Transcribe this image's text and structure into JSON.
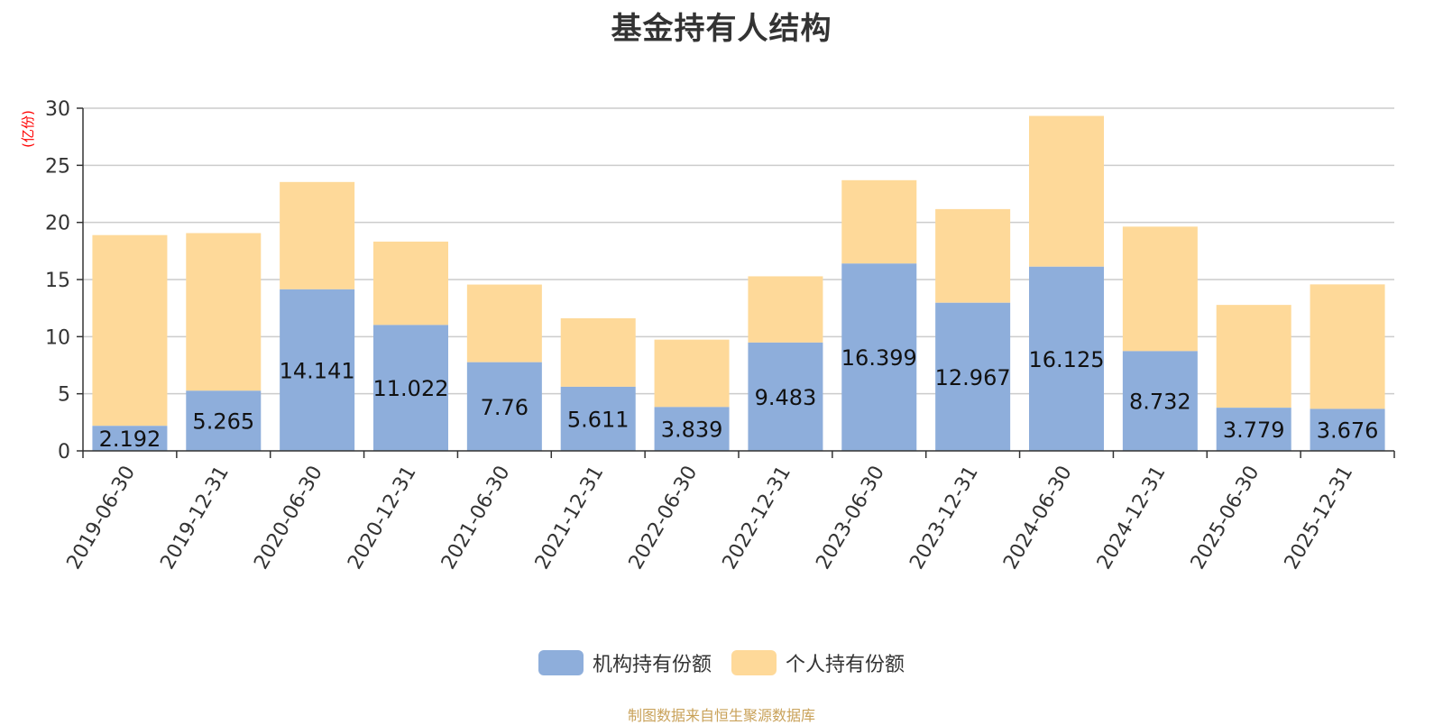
{
  "chart_data": {
    "type": "bar",
    "stacked": true,
    "title": "基金持有人结构",
    "ylabel": "(亿份)",
    "xlabel": "",
    "ylim": [
      0,
      30
    ],
    "yticks": [
      0,
      5,
      10,
      15,
      20,
      25,
      30
    ],
    "grid": true,
    "legend_position": "bottom",
    "categories": [
      "2019-06-30",
      "2019-12-31",
      "2020-06-30",
      "2020-12-31",
      "2021-06-30",
      "2021-12-31",
      "2022-06-30",
      "2022-12-31",
      "2023-06-30",
      "2023-12-31",
      "2024-06-30",
      "2024-12-31",
      "2025-06-30",
      "2025-12-31"
    ],
    "series": [
      {
        "name": "机构持有份额",
        "color": "#8eaedb",
        "values": [
          2.192,
          5.265,
          14.141,
          11.022,
          7.76,
          5.611,
          3.839,
          9.483,
          16.399,
          12.967,
          16.125,
          8.732,
          3.779,
          3.676
        ],
        "labels": [
          "2.192",
          "5.265",
          "14.141",
          "11.022",
          "7.76",
          "5.611",
          "3.839",
          "9.483",
          "16.399",
          "12.967",
          "16.125",
          "8.732",
          "3.779",
          "3.676"
        ]
      },
      {
        "name": "个人持有份额",
        "color": "#fed999",
        "values": [
          16.7,
          13.8,
          9.4,
          7.3,
          6.8,
          6.0,
          5.9,
          5.8,
          7.3,
          8.2,
          13.2,
          10.9,
          9.0,
          10.9
        ]
      }
    ],
    "axis_color": "#333333",
    "grid_color": "#cccccc",
    "ylabel_color": "#ff0000"
  },
  "source_note": "制图数据来自恒生聚源数据库",
  "source_note_color": "#c9a25a"
}
